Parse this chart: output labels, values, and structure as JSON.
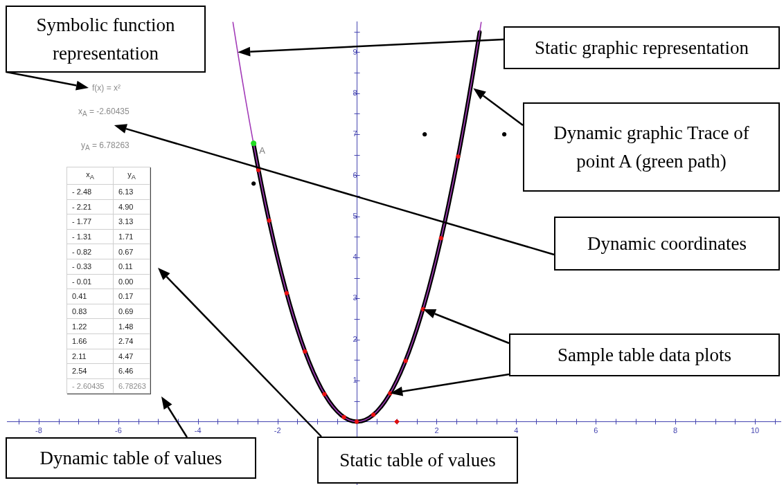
{
  "chart_data": {
    "type": "line",
    "xlim": [
      -8.8,
      10.65
    ],
    "ylim": [
      -1.55,
      9.75
    ],
    "xticks": [
      {
        "value": -8.5,
        "label": null
      },
      -8,
      {
        "value": -7.5,
        "label": null
      },
      {
        "value": -7,
        "label": null
      },
      {
        "value": -6.5,
        "label": null
      },
      -6,
      {
        "value": -5.5,
        "label": null
      },
      {
        "value": -5,
        "label": null
      },
      {
        "value": -4.5,
        "label": null
      },
      -4,
      {
        "value": -3.5,
        "label": null
      },
      {
        "value": -3,
        "label": null
      },
      {
        "value": -2.5,
        "label": null
      },
      -2,
      {
        "value": -1.5,
        "label": null
      },
      {
        "value": -1,
        "label": null
      },
      {
        "value": -0.5,
        "label": null
      },
      {
        "value": 0.5,
        "label": null
      },
      {
        "value": 1,
        "label": null
      },
      {
        "value": 1.5,
        "label": null
      },
      2,
      {
        "value": 2.5,
        "label": null
      },
      {
        "value": 3,
        "label": null
      },
      {
        "value": 3.5,
        "label": null
      },
      4,
      {
        "value": 4.5,
        "label": null
      },
      {
        "value": 5,
        "label": null
      },
      {
        "value": 5.5,
        "label": null
      },
      6,
      {
        "value": 6.5,
        "label": null
      },
      {
        "value": 7,
        "label": null
      },
      {
        "value": 7.5,
        "label": null
      },
      8,
      {
        "value": 8.5,
        "label": null
      },
      {
        "value": 9,
        "label": null
      },
      {
        "value": 9.5,
        "label": null
      },
      10,
      {
        "value": 10.5,
        "label": null
      }
    ],
    "yticks": [
      {
        "value": 0.5,
        "label": null
      },
      1,
      {
        "value": 1.5,
        "label": null
      },
      2,
      {
        "value": 2.5,
        "label": null
      },
      3,
      {
        "value": 3.5,
        "label": null
      },
      4,
      {
        "value": 4.5,
        "label": null
      },
      5,
      {
        "value": 5.5,
        "label": null
      },
      6,
      {
        "value": 6.5,
        "label": null
      },
      7,
      {
        "value": 7.5,
        "label": null
      },
      8,
      {
        "value": 8.5,
        "label": null
      },
      9,
      {
        "value": 9.5,
        "label": null
      }
    ],
    "series": [
      {
        "color": "#000000",
        "x": [
          -2.6,
          -2.5,
          -2.4,
          -2.3,
          -2.2,
          -2.1,
          -2,
          -1.9,
          -1.8,
          -1.7,
          -1.6,
          -1.5,
          -1.4,
          -1.3,
          -1.2,
          -1.1,
          -1,
          -0.9,
          -0.8,
          -0.7,
          -0.6,
          -0.5,
          -0.4,
          -0.3,
          -0.2,
          -0.1,
          0,
          0.1,
          0.2,
          0.3,
          0.4,
          0.5,
          0.6,
          0.7,
          0.8,
          0.9,
          1,
          1.1,
          1.2,
          1.3,
          1.4,
          1.5,
          1.6,
          1.7,
          1.8,
          1.9,
          2,
          2.1,
          2.2,
          2.3,
          2.4,
          2.5,
          2.6,
          2.7,
          2.8,
          2.9,
          3,
          3.08
        ],
        "values": [
          6.76,
          6.25,
          5.76,
          5.29,
          4.84,
          4.41,
          4,
          3.61,
          3.24,
          2.89,
          2.56,
          2.25,
          1.96,
          1.69,
          1.44,
          1.21,
          1,
          0.81,
          0.64,
          0.49,
          0.36,
          0.25,
          0.16,
          0.09,
          0.04,
          0.01,
          0,
          0.01,
          0.04,
          0.09,
          0.16,
          0.25,
          0.36,
          0.49,
          0.64,
          0.81,
          1,
          1.21,
          1.44,
          1.69,
          1.96,
          2.25,
          2.56,
          2.89,
          3.24,
          3.61,
          4,
          4.41,
          4.84,
          5.29,
          5.76,
          6.25,
          6.76,
          7.29,
          7.84,
          8.41,
          9,
          9.49
        ]
      },
      {
        "color": "#a33cb8",
        "x": [
          -3.12,
          -3,
          -2.9,
          -2.8,
          -2.7,
          -2.6,
          -2.5,
          -2.4,
          -2.3,
          -2.2,
          -2.1,
          -2,
          -1.9,
          -1.8,
          -1.7,
          -1.6,
          -1.5,
          -1.4,
          -1.3,
          -1.2,
          -1.1,
          -1,
          -0.9,
          -0.8,
          -0.7,
          -0.6,
          -0.5,
          -0.4,
          -0.3,
          -0.2,
          -0.1,
          0,
          0.1,
          0.2,
          0.3,
          0.4,
          0.5,
          0.6,
          0.7,
          0.8,
          0.9,
          1,
          1.1,
          1.2,
          1.3,
          1.4,
          1.5,
          1.6,
          1.7,
          1.8,
          1.9,
          2,
          2.1,
          2.2,
          2.3,
          2.4,
          2.5,
          2.6,
          2.7,
          2.8,
          2.9,
          3,
          3.12
        ],
        "values": [
          9.73,
          9,
          8.41,
          7.84,
          7.29,
          6.76,
          6.25,
          5.76,
          5.29,
          4.84,
          4.41,
          4,
          3.61,
          3.24,
          2.89,
          2.56,
          2.25,
          1.96,
          1.69,
          1.44,
          1.21,
          1,
          0.81,
          0.64,
          0.49,
          0.36,
          0.25,
          0.16,
          0.09,
          0.04,
          0.01,
          0,
          0.01,
          0.04,
          0.09,
          0.16,
          0.25,
          0.36,
          0.49,
          0.64,
          0.81,
          1,
          1.21,
          1.44,
          1.69,
          1.96,
          2.25,
          2.56,
          2.89,
          3.24,
          3.61,
          4,
          4.41,
          4.84,
          5.29,
          5.76,
          6.25,
          6.76,
          7.29,
          7.84,
          8.41,
          9,
          9.73
        ]
      },
      {
        "type": "scatter",
        "color": "#ee1111",
        "marker": "circle",
        "x": [
          -2.48,
          -2.21,
          -1.77,
          -1.31,
          -0.82,
          -0.33,
          -0.01,
          0.41,
          0.83,
          1.22,
          1.66,
          2.11,
          2.54
        ],
        "values": [
          6.13,
          4.9,
          3.13,
          1.71,
          0.67,
          0.11,
          0,
          0.17,
          0.69,
          1.48,
          2.74,
          4.47,
          6.46
        ]
      },
      {
        "type": "scatter",
        "color": "#dd1111",
        "marker": "diamond",
        "x": [
          1
        ],
        "values": [
          0
        ]
      },
      {
        "type": "scatter",
        "color": "#000000",
        "marker": "circle",
        "x": [
          -2.6,
          1.7,
          3.7
        ],
        "values": [
          5.8,
          7,
          7
        ]
      },
      {
        "type": "scatter",
        "name": "A",
        "color": "#22dd22",
        "marker": "circle",
        "x": [
          -2.6
        ],
        "values": [
          6.78
        ]
      }
    ],
    "annotations": [
      "Symbolic function representation",
      "Static graphic representation",
      "Dynamic graphic Trace of point A (green path)",
      "Dynamic coordinates",
      "Sample table data plots",
      "Dynamic table of values",
      "Static table of values",
      "f(x) = x²",
      "x$_{A}$ = -2.60435",
      "y$_{A}$ = 6.78263",
      "x$_{A}$",
      "y$_{A}$",
      "- 2.48",
      "6.13",
      "- 2.21",
      "4.90",
      "- 1.77",
      "3.13",
      "- 1.31",
      "1.71",
      "- 0.82",
      "0.67",
      "- 0.33",
      "0.11",
      "- 0.01",
      "0.00",
      "0.41",
      "0.17",
      "0.83",
      "0.69",
      "1.22",
      "1.48",
      "1.66",
      "2.74",
      "2.11",
      "4.47",
      "2.54",
      "6.46",
      "- 2.60435",
      "6.78263"
    ]
  }
}
